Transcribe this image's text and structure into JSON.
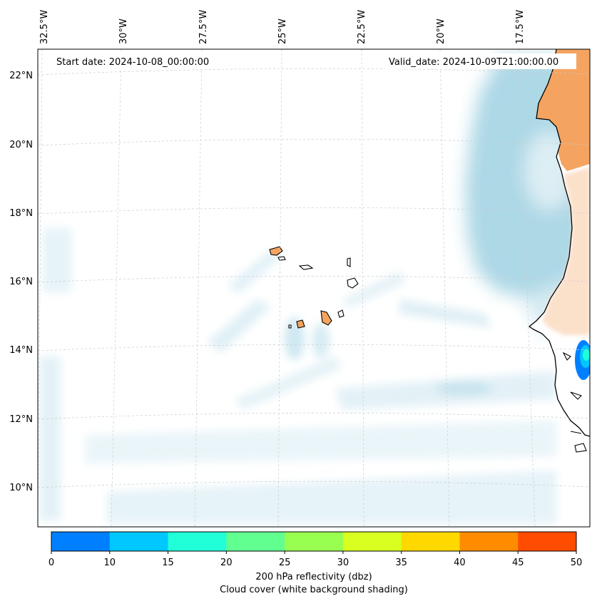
{
  "map": {
    "start_label": "Start date: 2024-10-08_00:00:00",
    "valid_label": "Valid_date: 2024-10-09T21:00:00.00",
    "lon_labels": [
      "32.5°W",
      "30°W",
      "27.5°W",
      "25°W",
      "22.5°W",
      "20°W",
      "17.5°W"
    ],
    "lat_labels": [
      "22°N",
      "20°N",
      "18°N",
      "16°N",
      "14°N",
      "12°N",
      "10°N"
    ],
    "colorbar": {
      "ticks": [
        "0",
        "10",
        "15",
        "20",
        "25",
        "30",
        "35",
        "40",
        "45",
        "50"
      ],
      "colors": [
        "#0080ff",
        "#00c8ff",
        "#20ffd8",
        "#60ff90",
        "#98ff50",
        "#d8ff20",
        "#ffd800",
        "#ff8c00",
        "#ff4c00"
      ],
      "label_line1": "200 hPa reflectivity (dbz)",
      "label_line2": "Cloud cover (white background shading)"
    },
    "colors": {
      "cloud": "#add8e6",
      "land": "#f4a460",
      "coast": "#000000",
      "grid": "#cccccc"
    }
  }
}
